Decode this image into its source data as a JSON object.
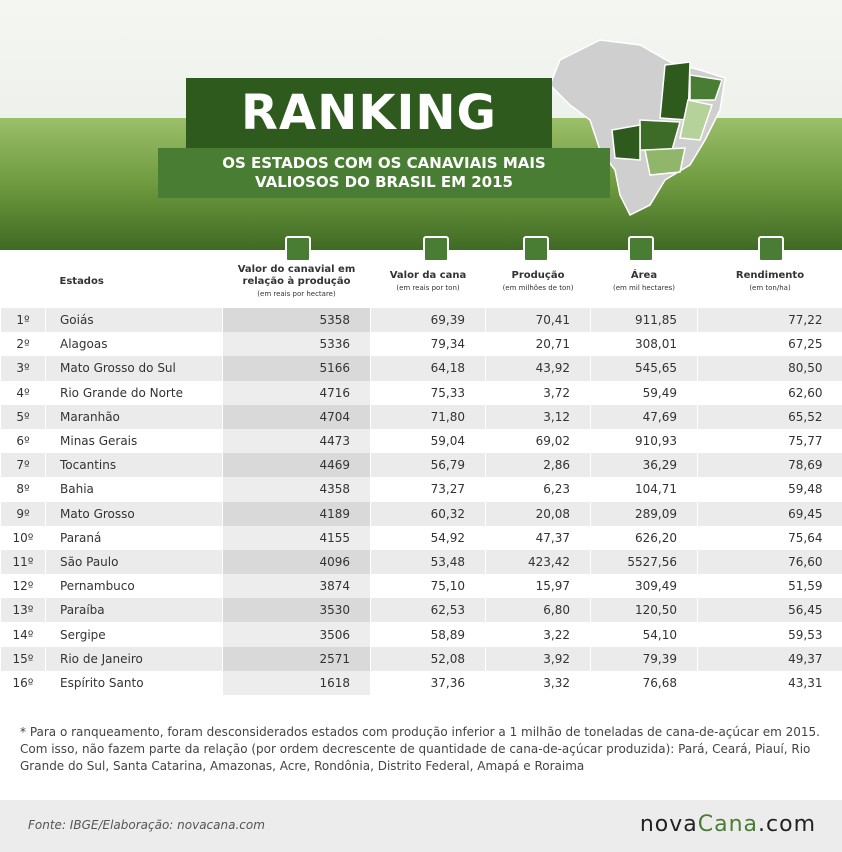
{
  "header": {
    "title": "RANKING",
    "subtitle": "OS ESTADOS COM OS CANAVIAIS MAIS VALIOSOS DO BRASIL EM 2015"
  },
  "table": {
    "columns": [
      {
        "label": "Estados"
      },
      {
        "label": "Valor do canavial em relação à produção",
        "unit": "(em reais por hectare)"
      },
      {
        "label": "Valor da cana",
        "unit": "(em reais por ton)"
      },
      {
        "label": "Produção",
        "unit": "(em milhões de ton)"
      },
      {
        "label": "Área",
        "unit": "(em mil hectares)"
      },
      {
        "label": "Rendimento",
        "unit": "(em ton/ha)"
      }
    ],
    "rows": [
      [
        "1º",
        "Goiás",
        "5358",
        "69,39",
        "70,41",
        "911,85",
        "77,22"
      ],
      [
        "2º",
        "Alagoas",
        "5336",
        "79,34",
        "20,71",
        "308,01",
        "67,25"
      ],
      [
        "3º",
        "Mato Grosso do Sul",
        "5166",
        "64,18",
        "43,92",
        "545,65",
        "80,50"
      ],
      [
        "4º",
        "Rio Grande do Norte",
        "4716",
        "75,33",
        "3,72",
        "59,49",
        "62,60"
      ],
      [
        "5º",
        "Maranhão",
        "4704",
        "71,80",
        "3,12",
        "47,69",
        "65,52"
      ],
      [
        "6º",
        "Minas Gerais",
        "4473",
        "59,04",
        "69,02",
        "910,93",
        "75,77"
      ],
      [
        "7º",
        "Tocantins",
        "4469",
        "56,79",
        "2,86",
        "36,29",
        "78,69"
      ],
      [
        "8º",
        "Bahia",
        "4358",
        "73,27",
        "6,23",
        "104,71",
        "59,48"
      ],
      [
        "9º",
        "Mato Grosso",
        "4189",
        "60,32",
        "20,08",
        "289,09",
        "69,45"
      ],
      [
        "10º",
        "Paraná",
        "4155",
        "54,92",
        "47,37",
        "626,20",
        "75,64"
      ],
      [
        "11º",
        "São Paulo",
        "4096",
        "53,48",
        "423,42",
        "5527,56",
        "76,60"
      ],
      [
        "12º",
        "Pernambuco",
        "3874",
        "75,10",
        "15,97",
        "309,49",
        "51,59"
      ],
      [
        "13º",
        "Paraíba",
        "3530",
        "62,53",
        "6,80",
        "120,50",
        "56,45"
      ],
      [
        "14º",
        "Sergipe",
        "3506",
        "58,89",
        "3,22",
        "54,10",
        "59,53"
      ],
      [
        "15º",
        "Rio de Janeiro",
        "2571",
        "52,08",
        "3,92",
        "79,39",
        "49,37"
      ],
      [
        "16º",
        "Espírito Santo",
        "1618",
        "37,36",
        "3,32",
        "76,68",
        "43,31"
      ]
    ]
  },
  "note": "* Para o ranqueamento, foram desconsiderados estados com produção inferior a 1 milhão de toneladas de cana-de-açúcar em 2015. Com isso, não fazem parte da relação (por ordem decrescente de quantidade de cana-de-açúcar produzida): Pará, Ceará, Piauí, Rio Grande do Sul, Santa Catarina, Amazonas, Acre, Rondônia, Distrito Federal, Amapá e Roraima",
  "source": "Fonte: IBGE/Elaboração: novacana.com",
  "logo": [
    "nova",
    "Cana",
    ".com"
  ]
}
